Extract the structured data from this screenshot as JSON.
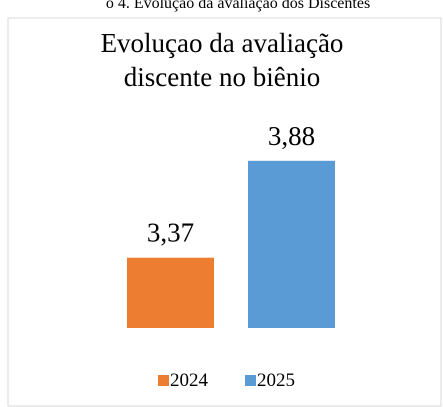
{
  "caption": "o 4. Evolução da avaliação dos Discentes",
  "chart_data": {
    "type": "bar",
    "title": [
      "Evoluçao da avaliação",
      "discente no biênio"
    ],
    "ylim": [
      3,
      4
    ],
    "legend": "bottom",
    "series": [
      {
        "name": "2024",
        "color": "#ed7d31",
        "values": [
          3.37
        ],
        "value_labels": [
          "3,37"
        ]
      },
      {
        "name": "2025",
        "color": "#5b9bd5",
        "values": [
          3.88
        ],
        "value_labels": [
          "3,88"
        ]
      }
    ]
  }
}
